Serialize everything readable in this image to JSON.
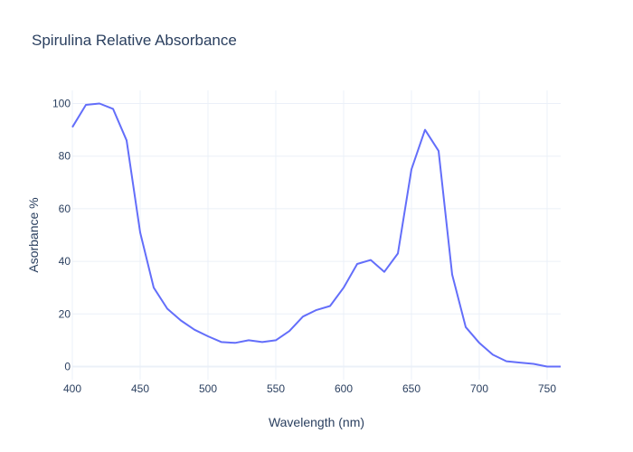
{
  "chart_data": {
    "type": "line",
    "title": "Spirulina Relative Absorbance",
    "xlabel": "Wavelength (nm)",
    "ylabel": "Asorbance %",
    "xlim": [
      400,
      760
    ],
    "ylim": [
      -5,
      105
    ],
    "xticks": [
      400,
      450,
      500,
      550,
      600,
      650,
      700,
      750
    ],
    "yticks": [
      0,
      20,
      40,
      60,
      80,
      100
    ],
    "grid": true,
    "color": "#636efa",
    "x": [
      400,
      410,
      420,
      430,
      440,
      450,
      460,
      470,
      480,
      490,
      500,
      510,
      520,
      530,
      540,
      550,
      560,
      570,
      580,
      590,
      600,
      610,
      620,
      630,
      640,
      650,
      660,
      670,
      680,
      690,
      700,
      710,
      720,
      730,
      740,
      750,
      760
    ],
    "y": [
      91,
      99.5,
      100,
      98,
      86,
      51,
      30,
      22,
      17.5,
      14,
      11.5,
      9.3,
      9,
      10,
      9.3,
      10,
      13.5,
      19,
      21.5,
      23,
      30,
      39,
      40.5,
      36,
      43,
      75,
      90,
      82,
      35,
      15,
      9,
      4.5,
      2,
      1.5,
      1,
      0,
      0
    ]
  }
}
